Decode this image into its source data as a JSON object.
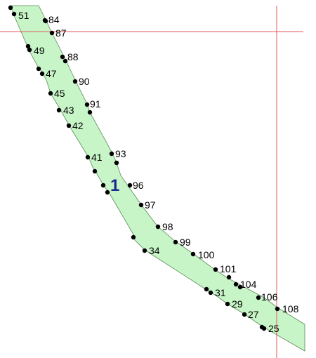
{
  "colors": {
    "background": "#ffffff",
    "region_fill": "#c8f5c8",
    "region_stroke": "#5a8a5a",
    "guide_line": "#e05a5a",
    "point": "#000000",
    "region_label": "#1a2a8c"
  },
  "region": {
    "label": "1"
  },
  "points": [
    {
      "id": "p-51",
      "label": "51"
    },
    {
      "id": "p-84",
      "label": "84"
    },
    {
      "id": "p-87",
      "label": "87"
    },
    {
      "id": "p-49",
      "label": "49"
    },
    {
      "id": "p-88",
      "label": "88"
    },
    {
      "id": "p-47",
      "label": "47"
    },
    {
      "id": "p-90",
      "label": "90"
    },
    {
      "id": "p-45",
      "label": "45"
    },
    {
      "id": "p-91",
      "label": "91"
    },
    {
      "id": "p-43",
      "label": "43"
    },
    {
      "id": "p-42",
      "label": "42"
    },
    {
      "id": "p-93",
      "label": "93"
    },
    {
      "id": "p-41",
      "label": "41"
    },
    {
      "id": "p-96",
      "label": "96"
    },
    {
      "id": "p-97",
      "label": "97"
    },
    {
      "id": "p-98",
      "label": "98"
    },
    {
      "id": "p-99",
      "label": "99"
    },
    {
      "id": "p-34",
      "label": "34"
    },
    {
      "id": "p-100",
      "label": "100"
    },
    {
      "id": "p-101",
      "label": "101"
    },
    {
      "id": "p-104",
      "label": "104"
    },
    {
      "id": "p-31",
      "label": "31"
    },
    {
      "id": "p-106",
      "label": "106"
    },
    {
      "id": "p-29",
      "label": "29"
    },
    {
      "id": "p-108",
      "label": "108"
    },
    {
      "id": "p-27",
      "label": "27"
    },
    {
      "id": "p-25",
      "label": "25"
    },
    {
      "id": "p-u1",
      "label": ""
    },
    {
      "id": "p-u2",
      "label": ""
    },
    {
      "id": "p-u3",
      "label": ""
    },
    {
      "id": "p-u4",
      "label": ""
    },
    {
      "id": "p-u5",
      "label": ""
    },
    {
      "id": "p-u6",
      "label": ""
    },
    {
      "id": "p-u7",
      "label": ""
    },
    {
      "id": "p-u8",
      "label": ""
    },
    {
      "id": "p-u9",
      "label": ""
    },
    {
      "id": "p-u10",
      "label": ""
    },
    {
      "id": "p-u11",
      "label": ""
    },
    {
      "id": "p-u12",
      "label": ""
    },
    {
      "id": "p-u13",
      "label": ""
    },
    {
      "id": "p-u14",
      "label": ""
    },
    {
      "id": "p-u15",
      "label": ""
    }
  ]
}
